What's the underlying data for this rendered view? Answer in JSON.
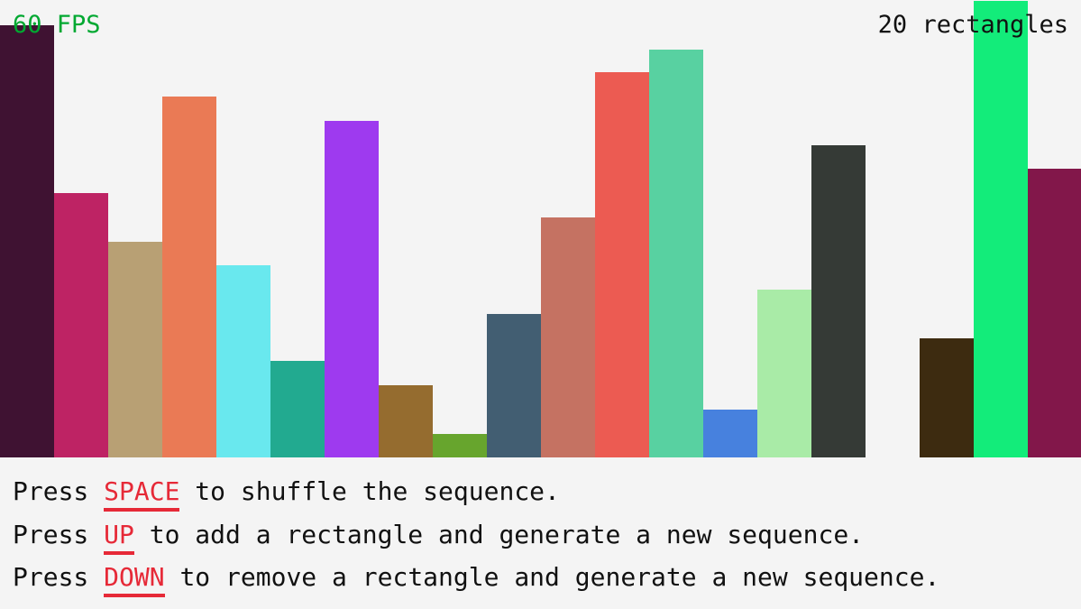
{
  "hud": {
    "fps": "60 FPS",
    "count": "20 rectangles"
  },
  "instructions": [
    {
      "pre": "Press ",
      "key": "SPACE",
      "post": " to shuffle the sequence."
    },
    {
      "pre": "Press ",
      "key": "UP",
      "post": " to add a rectangle and generate a new sequence."
    },
    {
      "pre": "Press ",
      "key": "DOWN",
      "post": " to remove a rectangle and generate a new sequence."
    }
  ],
  "colors": {
    "fps": "#00a831",
    "key": "#e62937",
    "background": "#f4f4f4"
  },
  "chart_data": {
    "type": "bar",
    "ylim": [
      0,
      507
    ],
    "values": [
      479,
      293,
      239,
      400,
      213,
      107,
      373,
      80,
      26,
      159,
      266,
      427,
      452,
      53,
      186,
      346,
      0,
      132,
      506,
      320
    ],
    "colors": [
      "#3f1232",
      "#be2364",
      "#b8a074",
      "#ea7a55",
      "#69e8ee",
      "#22aa90",
      "#9e3aef",
      "#956c2f",
      "#67a52d",
      "#425e72",
      "#c57262",
      "#ec5b52",
      "#58d1a1",
      "#4781de",
      "#a9eba7",
      "#353a36",
      "#f4f4f4",
      "#3d2b10",
      "#13ec7a",
      "#82174a"
    ]
  }
}
